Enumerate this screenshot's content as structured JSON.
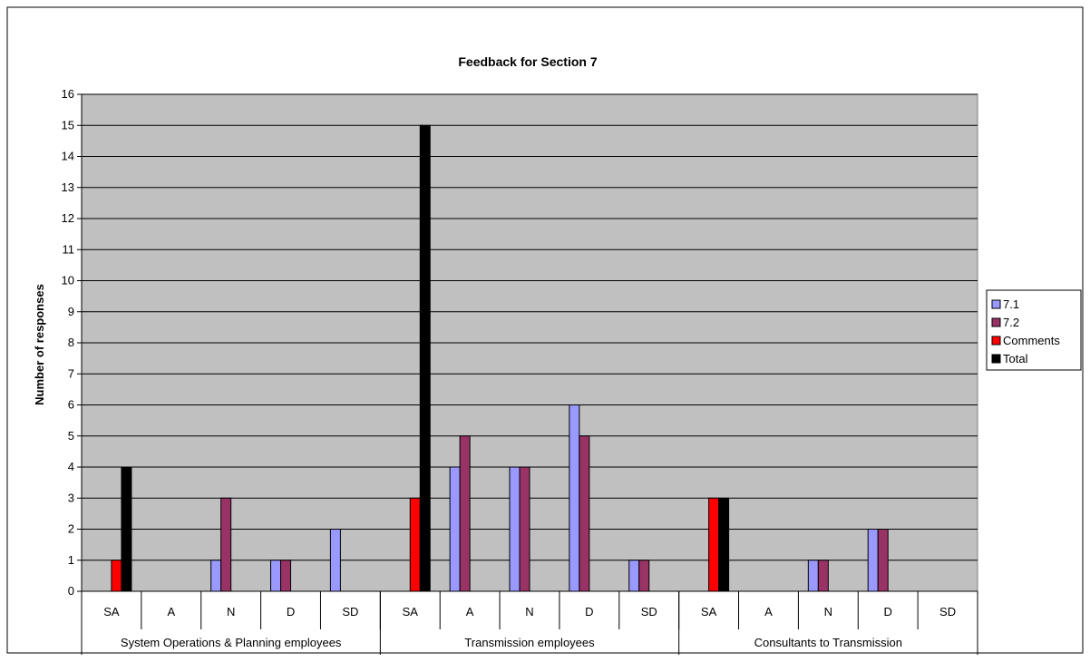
{
  "chart_data": {
    "type": "bar",
    "title": "Feedback for Section 7",
    "ylabel": "Number of responses",
    "xlabel": "",
    "ylim": [
      0,
      16
    ],
    "yticks": [
      0,
      1,
      2,
      3,
      4,
      5,
      6,
      7,
      8,
      9,
      10,
      11,
      12,
      13,
      14,
      15,
      16
    ],
    "grid": true,
    "legend": "right",
    "groups": [
      {
        "name": "System Operations & Planning employees",
        "categories": [
          "SA",
          "A",
          "N",
          "D",
          "SD"
        ]
      },
      {
        "name": "Transmission employees",
        "categories": [
          "SA",
          "A",
          "N",
          "D",
          "SD"
        ]
      },
      {
        "name": "Consultants to Transmission",
        "categories": [
          "SA",
          "A",
          "N",
          "D",
          "SD"
        ]
      }
    ],
    "series": [
      {
        "name": "7.1",
        "color": "#9999ff",
        "values": [
          0,
          0,
          1,
          1,
          2,
          0,
          4,
          4,
          6,
          1,
          0,
          0,
          1,
          2,
          0
        ]
      },
      {
        "name": "7.2",
        "color": "#993366",
        "values": [
          0,
          0,
          3,
          1,
          0,
          0,
          5,
          4,
          5,
          1,
          0,
          0,
          1,
          2,
          0
        ]
      },
      {
        "name": "Comments",
        "color": "#ff0000",
        "values": [
          1,
          0,
          0,
          0,
          0,
          3,
          0,
          0,
          0,
          0,
          3,
          0,
          0,
          0,
          0
        ]
      },
      {
        "name": "Total",
        "color": "#000000",
        "values": [
          4,
          0,
          0,
          0,
          0,
          15,
          0,
          0,
          0,
          0,
          3,
          0,
          0,
          0,
          0
        ]
      }
    ],
    "plot_background": "#c0c0c0"
  }
}
